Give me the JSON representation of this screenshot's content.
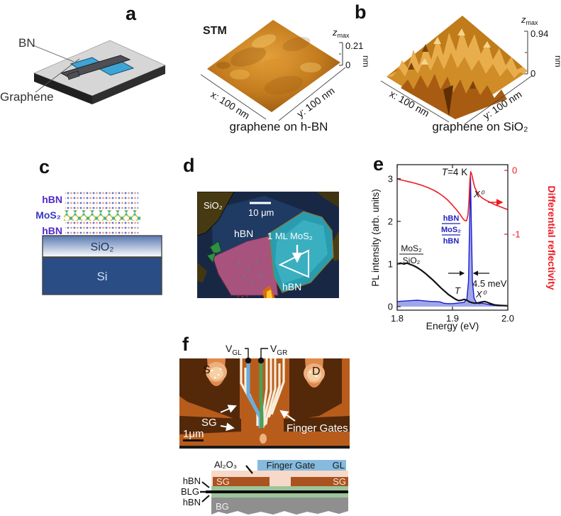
{
  "figure": {
    "panel_a": {
      "label": "a",
      "bn_label": "BN",
      "graphene_label": "Graphene",
      "stm_title": "STM",
      "z_base": "z",
      "z_sub": "max",
      "z_top": "0.21",
      "z_zero": "0",
      "z_unit": "nm",
      "x_axis_label": "x: 100 nm",
      "y_axis_label": "y: 100 nm",
      "caption": "graphene on h-BN"
    },
    "panel_b": {
      "label": "b",
      "z_base": "z",
      "z_sub": "max",
      "z_top": "0.94",
      "z_zero": "0",
      "z_unit": "nm",
      "x_axis_label": "x: 100 nm",
      "y_axis_label": "y: 100 nm",
      "caption": "graphene on SiO₂"
    },
    "panel_c": {
      "label": "c",
      "layer_top": "hBN",
      "layer_mid": "MoS₂",
      "layer_bottom": "hBN",
      "oxide": "SiO₂",
      "substrate": "Si"
    },
    "panel_d": {
      "label": "d",
      "substrate_label": "SiO₂",
      "scale_label": "10 μm",
      "hbn_label": "hBN",
      "mos2_label": "1 ML MoS₂",
      "hbn_flake_label": "hBN"
    },
    "panel_e": {
      "label": "e"
    },
    "panel_f": {
      "label": "f",
      "vgl_base": "V",
      "vgl_sub": "GL",
      "vgr_base": "V",
      "vgr_sub": "GR",
      "source": "S",
      "drain": "D",
      "side_gate": "SG",
      "finger_gates": "Finger Gates",
      "scale": "1μm",
      "cs_al2o3": "Al₂O₃",
      "cs_finger_gate": "Finger Gate",
      "cs_gl": "GL",
      "cs_sg_left": "SG",
      "cs_sg_right": "SG",
      "cs_hbn_top": "hBN",
      "cs_blg": "BLG",
      "cs_hbn_bottom": "hBN",
      "cs_bg": "BG"
    }
  },
  "chart_data": {
    "type": "line",
    "title": "",
    "x_axis": {
      "label": "Energy (eV)",
      "range": [
        1.8,
        2.0
      ],
      "ticks": [
        {
          "v": 1.8,
          "label": "1.8"
        },
        {
          "v": 1.9,
          "label": "1.9"
        },
        {
          "v": 2.0,
          "label": "2.0"
        }
      ]
    },
    "left_axis": {
      "label": "PL intensity (arb. units)",
      "range": [
        -0.083,
        3.33
      ],
      "ticks": [
        {
          "v": 0,
          "label": "0"
        },
        {
          "v": 1,
          "label": "1"
        },
        {
          "v": 2,
          "label": "2"
        },
        {
          "v": 3,
          "label": "3"
        }
      ]
    },
    "right_axis": {
      "label": "Differential reflectivity",
      "color": "#ed1c24",
      "range": [
        -2.19,
        0.09
      ],
      "ticks": [
        {
          "v": 0,
          "label": "0"
        },
        {
          "v": -1,
          "label": "-1"
        }
      ]
    },
    "annotations": {
      "temperature": {
        "base": "T",
        "rest": "=4 K"
      },
      "exciton_reflectivity": "X⁰",
      "stack": {
        "top": "hBN",
        "mid": "MoS₂",
        "bottom": "hBN"
      },
      "linewidth": "4.5 meV",
      "reference": {
        "top": "MoS₂",
        "bottom": "SiO₂"
      },
      "trion": "T",
      "exciton_pl": "X⁰"
    },
    "series": [
      {
        "name": "hBN/MoS₂/hBN PL",
        "axis": "left",
        "color": "#1c1ccd",
        "fill": "#8089e0",
        "fill_opacity": 0.75,
        "width": 1.4,
        "points": [
          [
            1.8,
            0.12
          ],
          [
            1.812,
            0.13
          ],
          [
            1.824,
            0.14
          ],
          [
            1.836,
            0.15
          ],
          [
            1.845,
            0.14
          ],
          [
            1.853,
            0.13
          ],
          [
            1.862,
            0.12
          ],
          [
            1.87,
            0.12
          ],
          [
            1.878,
            0.11
          ],
          [
            1.884,
            0.08
          ],
          [
            1.892,
            0.07
          ],
          [
            1.9,
            0.07
          ],
          [
            1.908,
            0.08
          ],
          [
            1.915,
            0.09
          ],
          [
            1.921,
            0.1
          ],
          [
            1.926,
            0.18
          ],
          [
            1.929,
            0.6
          ],
          [
            1.931,
            2.0
          ],
          [
            1.9325,
            3.05
          ],
          [
            1.934,
            2.0
          ],
          [
            1.936,
            0.6
          ],
          [
            1.939,
            0.2
          ],
          [
            1.943,
            0.1
          ],
          [
            1.948,
            0.07
          ],
          [
            1.953,
            0.08
          ],
          [
            1.958,
            0.07
          ],
          [
            1.965,
            0.05
          ],
          [
            1.975,
            0.03
          ],
          [
            1.987,
            0.02
          ],
          [
            2.0,
            0.02
          ]
        ]
      },
      {
        "name": "MoS₂/SiO₂ PL",
        "axis": "left",
        "color": "#121212",
        "width": 2.2,
        "points": [
          [
            1.8,
            1.0
          ],
          [
            1.806,
            1.02
          ],
          [
            1.812,
            1.0
          ],
          [
            1.818,
            1.02
          ],
          [
            1.824,
            0.99
          ],
          [
            1.83,
            0.96
          ],
          [
            1.837,
            0.91
          ],
          [
            1.844,
            0.85
          ],
          [
            1.851,
            0.78
          ],
          [
            1.858,
            0.7
          ],
          [
            1.865,
            0.62
          ],
          [
            1.872,
            0.53
          ],
          [
            1.879,
            0.44
          ],
          [
            1.886,
            0.36
          ],
          [
            1.893,
            0.28
          ],
          [
            1.9,
            0.22
          ],
          [
            1.906,
            0.17
          ],
          [
            1.911,
            0.14
          ],
          [
            1.916,
            0.15
          ],
          [
            1.921,
            0.17
          ],
          [
            1.926,
            0.15
          ],
          [
            1.931,
            0.11
          ],
          [
            1.936,
            0.09
          ],
          [
            1.941,
            0.08
          ],
          [
            1.947,
            0.09
          ],
          [
            1.953,
            0.11
          ],
          [
            1.958,
            0.12
          ],
          [
            1.963,
            0.1
          ],
          [
            1.969,
            0.07
          ],
          [
            1.976,
            0.04
          ],
          [
            1.985,
            0.03
          ],
          [
            2.0,
            0.02
          ]
        ]
      },
      {
        "name": "Differential reflectivity",
        "axis": "right",
        "color": "#ed1c24",
        "width": 1.6,
        "points": [
          [
            1.8,
            -0.135
          ],
          [
            1.81,
            -0.155
          ],
          [
            1.82,
            -0.175
          ],
          [
            1.832,
            -0.2
          ],
          [
            1.845,
            -0.235
          ],
          [
            1.856,
            -0.27
          ],
          [
            1.866,
            -0.31
          ],
          [
            1.875,
            -0.355
          ],
          [
            1.884,
            -0.41
          ],
          [
            1.892,
            -0.47
          ],
          [
            1.9,
            -0.545
          ],
          [
            1.907,
            -0.615
          ],
          [
            1.913,
            -0.68
          ],
          [
            1.918,
            -0.745
          ],
          [
            1.922,
            -0.785
          ],
          [
            1.9255,
            -0.79
          ],
          [
            1.928,
            -0.7
          ],
          [
            1.93,
            -0.45
          ],
          [
            1.9315,
            -0.15
          ],
          [
            1.933,
            -0.02
          ],
          [
            1.935,
            -0.07
          ],
          [
            1.9375,
            -0.17
          ],
          [
            1.94,
            -0.26
          ],
          [
            1.944,
            -0.335
          ],
          [
            1.949,
            -0.395
          ],
          [
            1.955,
            -0.44
          ],
          [
            1.962,
            -0.475
          ],
          [
            1.97,
            -0.51
          ],
          [
            1.979,
            -0.545
          ],
          [
            1.988,
            -0.575
          ],
          [
            2.0,
            -0.615
          ]
        ]
      }
    ]
  }
}
